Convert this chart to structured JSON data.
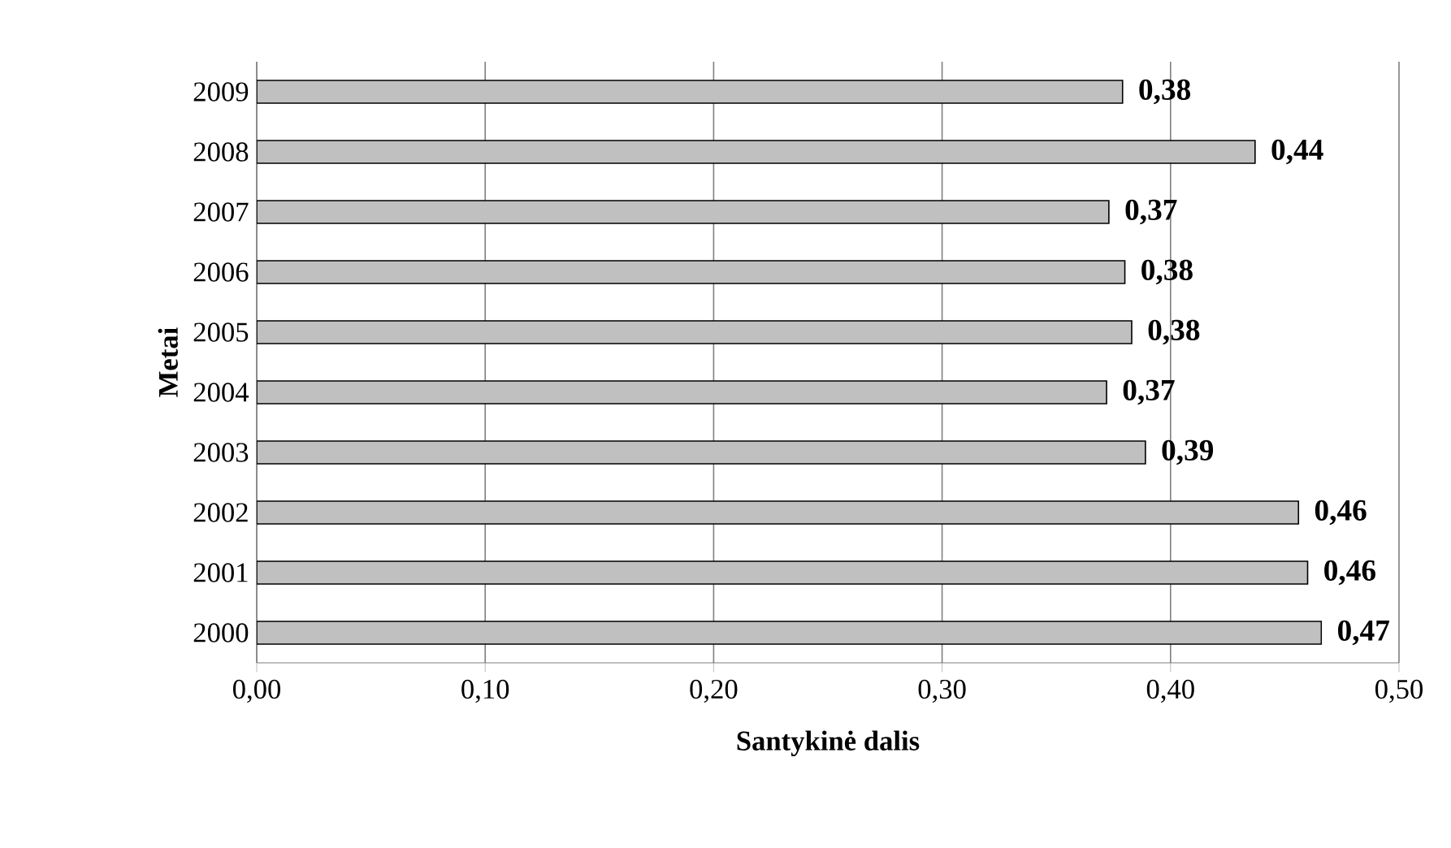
{
  "chart_data": {
    "type": "bar",
    "orientation": "horizontal",
    "xlabel": "Santykinė dalis",
    "ylabel": "Metai",
    "categories": [
      "2009",
      "2008",
      "2007",
      "2006",
      "2005",
      "2004",
      "2003",
      "2002",
      "2001",
      "2000"
    ],
    "values": [
      0.379,
      0.437,
      0.373,
      0.38,
      0.383,
      0.372,
      0.389,
      0.456,
      0.46,
      0.466
    ],
    "value_labels": [
      "0,38",
      "0,44",
      "0,37",
      "0,38",
      "0,38",
      "0,37",
      "0,39",
      "0,46",
      "0,46",
      "0,47"
    ],
    "color": "#c0c0c0",
    "xlim": [
      0,
      0.5
    ],
    "xticks": [
      {
        "value": 0,
        "label": "0,00"
      },
      {
        "value": 0.1,
        "label": "0,10"
      },
      {
        "value": 0.2,
        "label": "0,20"
      },
      {
        "value": 0.3,
        "label": "0,30"
      },
      {
        "value": 0.4,
        "label": "0,40"
      },
      {
        "value": 0.5,
        "label": "0,50"
      }
    ],
    "grid": "x"
  }
}
